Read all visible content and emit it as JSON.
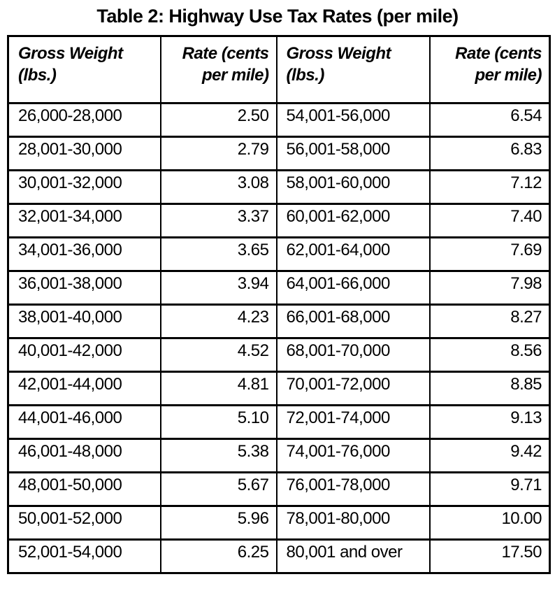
{
  "page": {
    "title": "Table 2: Highway Use Tax Rates (per mile)"
  },
  "colors": {
    "background": "#ffffff",
    "border": "#000000",
    "text": "#000000"
  },
  "table": {
    "headers": [
      "Gross Weight (lbs.)",
      "Rate (cents per mile)",
      "Gross Weight (lbs.)",
      "Rate (cents per mile)"
    ],
    "rows": [
      [
        "26,000-28,000",
        "2.50",
        "54,001-56,000",
        "6.54"
      ],
      [
        "28,001-30,000",
        "2.79",
        "56,001-58,000",
        "6.83"
      ],
      [
        "30,001-32,000",
        "3.08",
        "58,001-60,000",
        "7.12"
      ],
      [
        "32,001-34,000",
        "3.37",
        "60,001-62,000",
        "7.40"
      ],
      [
        "34,001-36,000",
        "3.65",
        "62,001-64,000",
        "7.69"
      ],
      [
        "36,001-38,000",
        "3.94",
        "64,001-66,000",
        "7.98"
      ],
      [
        "38,001-40,000",
        "4.23",
        "66,001-68,000",
        "8.27"
      ],
      [
        "40,001-42,000",
        "4.52",
        "68,001-70,000",
        "8.56"
      ],
      [
        "42,001-44,000",
        "4.81",
        "70,001-72,000",
        "8.85"
      ],
      [
        "44,001-46,000",
        "5.10",
        "72,001-74,000",
        "9.13"
      ],
      [
        "46,001-48,000",
        "5.38",
        "74,001-76,000",
        "9.42"
      ],
      [
        "48,001-50,000",
        "5.67",
        "76,001-78,000",
        "9.71"
      ],
      [
        "50,001-52,000",
        "5.96",
        "78,001-80,000",
        "10.00"
      ],
      [
        "52,001-54,000",
        "6.25",
        "80,001 and over",
        "17.50"
      ]
    ]
  }
}
